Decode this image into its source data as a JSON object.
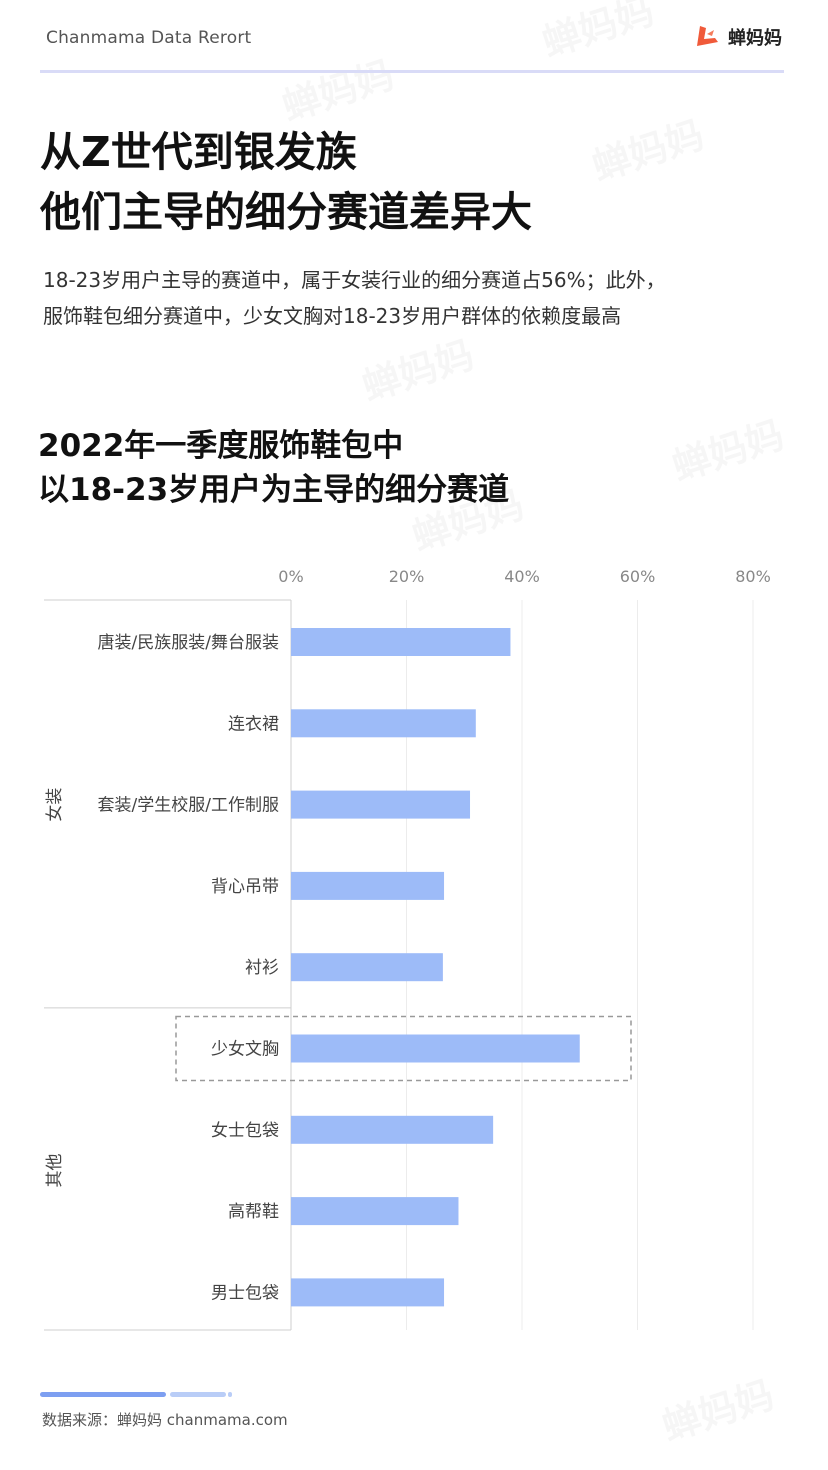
{
  "header": {
    "brand_left": "Chanmama Data Rerort",
    "logo_text": "蝉妈妈"
  },
  "title": {
    "line1": "从Z世代到银发族",
    "line2": "他们主导的细分赛道差异大"
  },
  "subtitle": {
    "line1": "18-23岁用户主导的赛道中，属于女装行业的细分赛道占56%；此外，",
    "line2": "服饰鞋包细分赛道中，少女文胸对18-23岁用户群体的依赖度最高"
  },
  "chart_title": {
    "line1": "2022年一季度服饰鞋包中",
    "line2": "以18-23岁用户为主导的细分赛道"
  },
  "watermark_text": "蝉妈妈",
  "footer": {
    "source": "数据来源：蝉妈妈 chanmama.com"
  },
  "colors": {
    "bar": "#9dbbf8",
    "accent": "#f05a3a"
  },
  "chart_data": {
    "type": "bar",
    "orientation": "horizontal",
    "categories": [
      "唐装/民族服装/舞台服装",
      "连衣裙",
      "套装/学生校服/工作制服",
      "背心吊带",
      "衬衫",
      "少女文胸",
      "女士包袋",
      "高帮鞋",
      "男士包袋"
    ],
    "groups": [
      {
        "name": "女装",
        "categories": [
          "唐装/民族服装/舞台服装",
          "连衣裙",
          "套装/学生校服/工作制服",
          "背心吊带",
          "衬衫"
        ]
      },
      {
        "name": "其他",
        "categories": [
          "少女文胸",
          "女士包袋",
          "高帮鞋",
          "男士包袋"
        ]
      }
    ],
    "values": [
      38,
      32,
      31,
      26.5,
      26.3,
      50,
      35,
      29,
      26.5
    ],
    "unit": "%",
    "xlim": [
      0,
      80
    ],
    "xticks": [
      "0%",
      "20%",
      "40%",
      "60%",
      "80%"
    ],
    "grid": true,
    "highlighted_category": "少女文胸"
  }
}
